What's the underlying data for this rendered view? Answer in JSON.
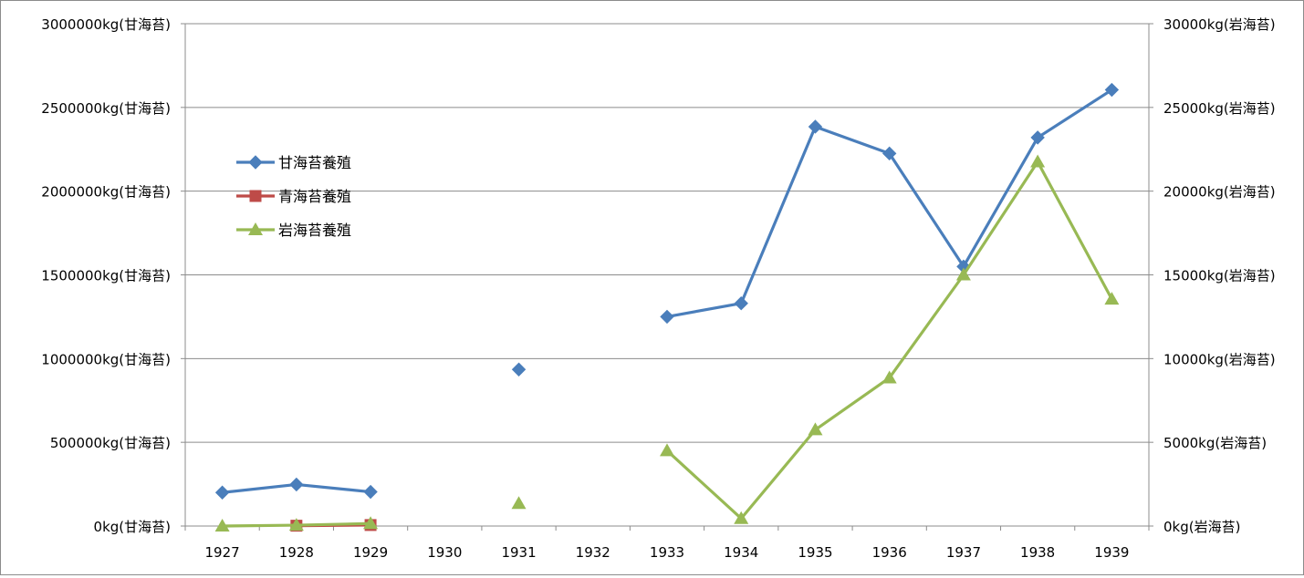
{
  "chart_data": {
    "type": "line",
    "title": "",
    "xlabel": "",
    "ylabel": "",
    "categories": [
      "1927",
      "1928",
      "1929",
      "1930",
      "1931",
      "1932",
      "1933",
      "1934",
      "1935",
      "1936",
      "1937",
      "1938",
      "1939"
    ],
    "y_left": {
      "min": 0,
      "max": 3000000,
      "step": 500000,
      "unit_suffix": "kg(甘海苔)",
      "ticks": [
        "0kg(甘海苔)",
        "500000kg(甘海苔)",
        "1000000kg(甘海苔)",
        "1500000kg(甘海苔)",
        "2000000kg(甘海苔)",
        "2500000kg(甘海苔)",
        "3000000kg(甘海苔)"
      ]
    },
    "y_right": {
      "min": 0,
      "max": 30000,
      "step": 5000,
      "unit_suffix": "kg(岩海苔)",
      "ticks": [
        "0kg(岩海苔)",
        "5000kg(岩海苔)",
        "10000kg(岩海苔)",
        "15000kg(岩海苔)",
        "20000kg(岩海苔)",
        "25000kg(岩海苔)",
        "30000kg(岩海苔)"
      ]
    },
    "grid": true,
    "legend_position": "left",
    "series": [
      {
        "name": "甘海苔養殖",
        "axis": "left",
        "color": "#4a7ebb",
        "marker": "diamond",
        "values": [
          200000,
          248000,
          204000,
          null,
          935000,
          null,
          1250000,
          1330000,
          2385000,
          2225000,
          1550000,
          2320000,
          2605000
        ]
      },
      {
        "name": "青海苔養殖",
        "axis": "left",
        "color": "#be4b48",
        "marker": "square",
        "values": [
          null,
          2000,
          6000,
          null,
          null,
          null,
          null,
          null,
          null,
          null,
          null,
          null,
          null
        ]
      },
      {
        "name": "岩海苔養殖",
        "axis": "right",
        "color": "#98b954",
        "marker": "triangle",
        "values": [
          0,
          50,
          150,
          null,
          1350,
          null,
          4500,
          450,
          5750,
          8850,
          15000,
          21750,
          13550
        ]
      }
    ]
  }
}
